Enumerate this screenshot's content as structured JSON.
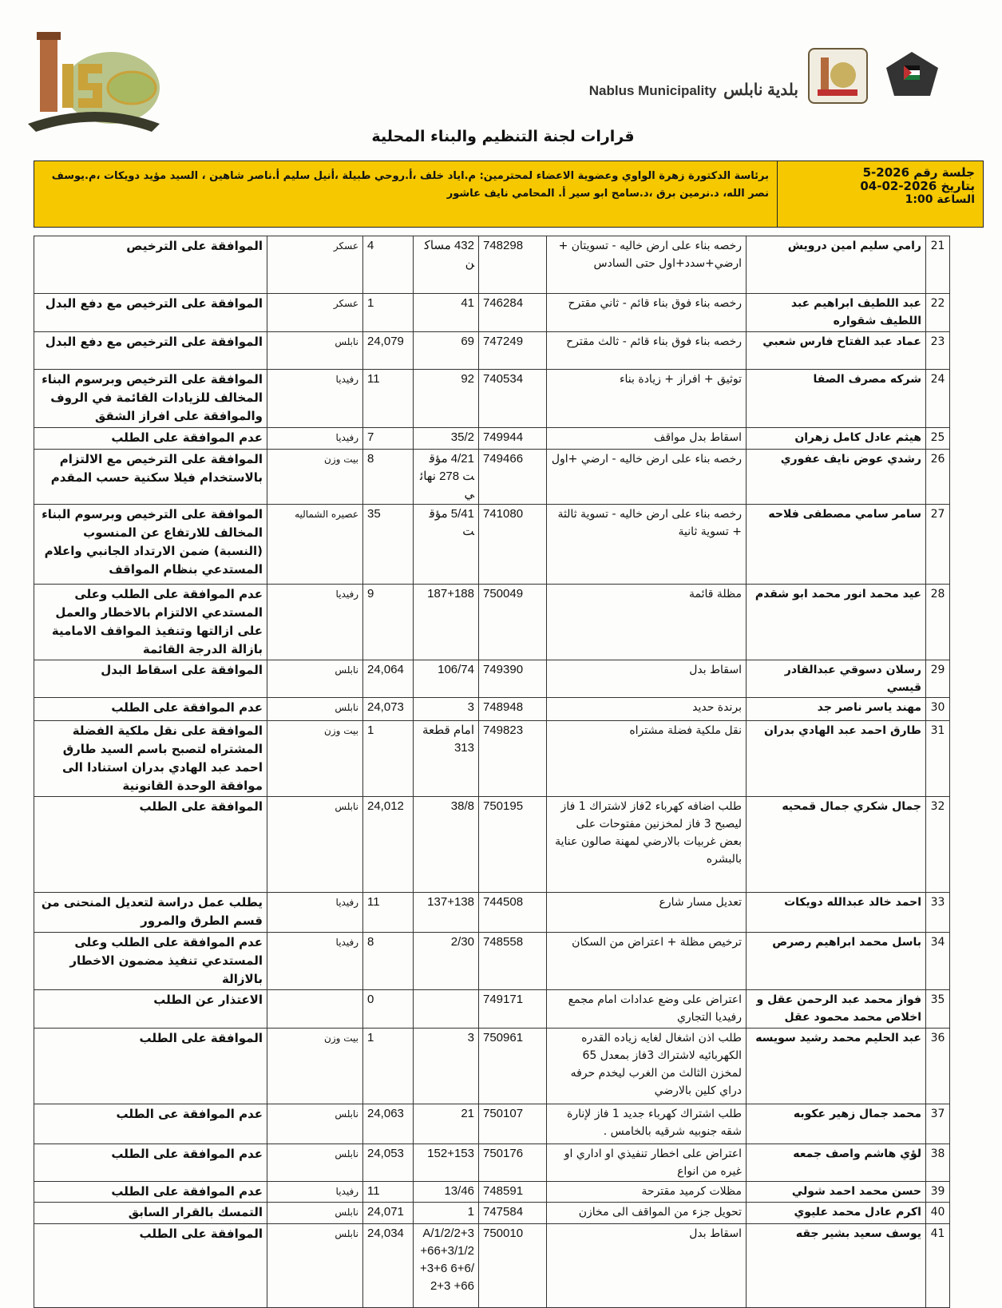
{
  "header": {
    "brand_en": "Nablus Municipality",
    "brand_ar": "بلدية نابلس",
    "logo_text": "150 نابلس",
    "seal_text": "بلدية نابلس",
    "title": "قرارات لجنة التنظيم والبناء المحلية"
  },
  "session": {
    "number": "جلسة رقم 2026-5",
    "date": "بتاريخ 2026-02-04",
    "time": "الساعة 1:00"
  },
  "members": "برئاسة الدكتورة زهرة الواوي وعضوية الاعضاء لمحترمين: م.اياد خلف ،أ.روحي طبيلة ،أنيل سليم أ.ناصر شاهين ، السيد مؤيد دويكات ،م.يوسف نصر الله، د.نرمين برق ،د.سامح ابو سير أ. المحامي نايف عاشور",
  "rows": [
    {
      "n": "21",
      "name": "رامي سليم امين درويش",
      "desc": "رخصه بناء على ارض خاليه - تسويتان + ارضي+سدد+اول حتى السادس",
      "file": "748298",
      "plot": "432 مساكن",
      "basin": "4",
      "area": "عسكر",
      "decision": "الموافقة على الترخيص"
    },
    {
      "n": "22",
      "name": "عبد اللطيف ابراهيم عبد اللطيف شقواره",
      "desc": "رخصه بناء فوق بناء قائم - ثاني مقترح",
      "file": "746284",
      "plot": "41",
      "basin": "1",
      "area": "عسكر",
      "decision": "الموافقة على الترخيص مع دفع البدل"
    },
    {
      "n": "23",
      "name": "عماد عبد الفتاح فارس شعبي",
      "desc": "رخصه بناء فوق بناء قائم - ثالث مقترح",
      "file": "747249",
      "plot": "69",
      "basin": "24,079",
      "area": "نابلس",
      "decision": "الموافقة على الترخيص مع دفع البدل"
    },
    {
      "n": "24",
      "name": "شركه مصرف الصفا",
      "desc": "توثيق + افراز + زيادة بناء",
      "file": "740534",
      "plot": "92",
      "basin": "11",
      "area": "رفيديا",
      "decision": "الموافقة على الترخيص وبرسوم البناء المخالف للزيادات القائمة في الروف والموافقة على افراز الشقق"
    },
    {
      "n": "25",
      "name": "هيثم عادل كامل زهران",
      "desc": "اسقاط بدل مواقف",
      "file": "749944",
      "plot": "35/2",
      "basin": "7",
      "area": "رفيديا",
      "decision": "عدم الموافقة على الطلب"
    },
    {
      "n": "26",
      "name": "رشدي عوض نايف عفوري",
      "desc": "رخصه بناء على ارض خاليه - ارضي +اول",
      "file": "749466",
      "plot": "4/21 مؤقت 278 نهائي",
      "basin": "8",
      "area": "بيت وزن",
      "decision": "الموافقة على الترخيص مع الالتزام بالاستخدام فيلا سكنية حسب المقدم"
    },
    {
      "n": "27",
      "name": "سامر سامي مصطفى فلاحه",
      "desc": "رخصه بناء على ارض خاليه - تسوية ثالثة + تسوية ثانية",
      "file": "741080",
      "plot": "5/41 مؤقت",
      "basin": "35",
      "area": "عصيره الشماليه",
      "decision": "الموافقة على الترخيص وبرسوم البناء المخالف للارتفاع عن المنسوب (النسبة) ضمن الارتداد الجانبي واعلام المستدعي بنظام المواقف"
    },
    {
      "n": "28",
      "name": "عيد محمد انور محمد ابو شقدم",
      "desc": "مظلة قائمة",
      "file": "750049",
      "plot": "187+188",
      "basin": "9",
      "area": "رفيديا",
      "decision": "عدم الموافقة على الطلب وعلى المستدعي الالتزام بالاخطار والعمل على ازالتها وتنفيذ المواقف الامامية بازالة الدرجة القائمة"
    },
    {
      "n": "29",
      "name": "رسلان دسوقي عبدالقادر قيسي",
      "desc": "اسقاط بدل",
      "file": "749390",
      "plot": "106/74",
      "basin": "24,064",
      "area": "نابلس",
      "decision": "الموافقة على اسقاط البدل"
    },
    {
      "n": "30",
      "name": "مهند ياسر ناصر جد",
      "desc": "برندة حديد",
      "file": "748948",
      "plot": "3",
      "basin": "24,073",
      "area": "نابلس",
      "decision": "عدم الموافقة على الطلب"
    },
    {
      "n": "31",
      "name": "طارق احمد عبد الهادي بدران",
      "desc": "نقل ملكية فضلة مشتراه",
      "file": "749823",
      "plot": "امام قطعة 313",
      "basin": "1",
      "area": "بيت وزن",
      "decision": "الموافقة على نقل ملكية الفضلة المشتراه لتصبح باسم السيد طارق احمد عبد الهادي بدران استنادا الى موافقة الوحدة القانونية"
    },
    {
      "n": "32",
      "name": "جمال شكري جمال قمحيه",
      "desc": "طلب اضافه كهرباء 2فاز لاشتراك 1 فاز ليصبح 3 فاز لمخزنين مفتوحات على بعض غربيات بالارضي لمهنة صالون عناية بالبشره",
      "file": "750195",
      "plot": "38/8",
      "basin": "24,012",
      "area": "نابلس",
      "decision": "الموافقة على الطلب"
    },
    {
      "n": "33",
      "name": "احمد خالد عبدالله دويكات",
      "desc": "تعديل مسار شارع",
      "file": "744508",
      "plot": "137+138",
      "basin": "11",
      "area": "رفيديا",
      "decision": "يطلب عمل دراسة لتعديل المنحنى من قسم الطرق والمرور"
    },
    {
      "n": "34",
      "name": "باسل محمد ابراهيم رصرص",
      "desc": "ترخيص مظلة + اعتراض من السكان",
      "file": "748558",
      "plot": "2/30",
      "basin": "8",
      "area": "رفيديا",
      "decision": "عدم الموافقة على الطلب وعلى المستدعي تنفيذ مضمون الاخطار بالازالة"
    },
    {
      "n": "35",
      "name": "فواز محمد عبد الرحمن عقل و اخلاص محمد محمود عقل",
      "desc": "اعتراض على وضع عدادات امام مجمع رفيديا التجاري",
      "file": "749171",
      "plot": "",
      "basin": "0",
      "area": "",
      "decision": "الاعتذار عن الطلب"
    },
    {
      "n": "36",
      "name": "عبد الحليم محمد رشيد سويسه",
      "desc": "طلب اذن اشغال لغايه زياده القدره الكهربائيه لاشتراك 3فاز بمعدل 65 لمخزن الثالث من الغرب ليخدم حرفه دراي كلين بالارضي",
      "file": "750961",
      "plot": "3",
      "basin": "1",
      "area": "بيت وزن",
      "decision": "الموافقة على الطلب"
    },
    {
      "n": "37",
      "name": "محمد جمال زهير عكوبه",
      "desc": "طلب اشتراك كهرباء جديد 1 فاز لإنارة شقه جنوبيه شرقيه بالخامس .",
      "file": "750107",
      "plot": "21",
      "basin": "24,063",
      "area": "نابلس",
      "decision": "عدم الموافقة عى الطلب"
    },
    {
      "n": "38",
      "name": "لؤي هاشم واصف جمعه",
      "desc": "اعتراض على اخطار تنفيذي او اداري او غيره من انواع",
      "file": "750176",
      "plot": "152+153",
      "basin": "24,053",
      "area": "نابلس",
      "decision": "عدم الموافقة على الطلب"
    },
    {
      "n": "39",
      "name": "حسن محمد احمد شولي",
      "desc": "مظلات كرميد مقترحة",
      "file": "748591",
      "plot": "13/46",
      "basin": "11",
      "area": "رفيديا",
      "decision": "عدم الموافقة على الطلب"
    },
    {
      "n": "40",
      "name": "اكرم عادل محمد عليوي",
      "desc": "تحويل جزء من المواقف الى مخازن",
      "file": "747584",
      "plot": "1",
      "basin": "24,071",
      "area": "نابلس",
      "decision": "التمسك بالقرار السابق"
    },
    {
      "n": "41",
      "name": "يوسف سعيد بشير جقه",
      "desc": "اسقاط بدل",
      "file": "750010",
      "plot": "A/1/2/2+3+66+3/1/2+3+6 6+6/2+3 +66",
      "basin": "24,034",
      "area": "نابلس",
      "decision": "الموافقة على الطلب"
    }
  ]
}
